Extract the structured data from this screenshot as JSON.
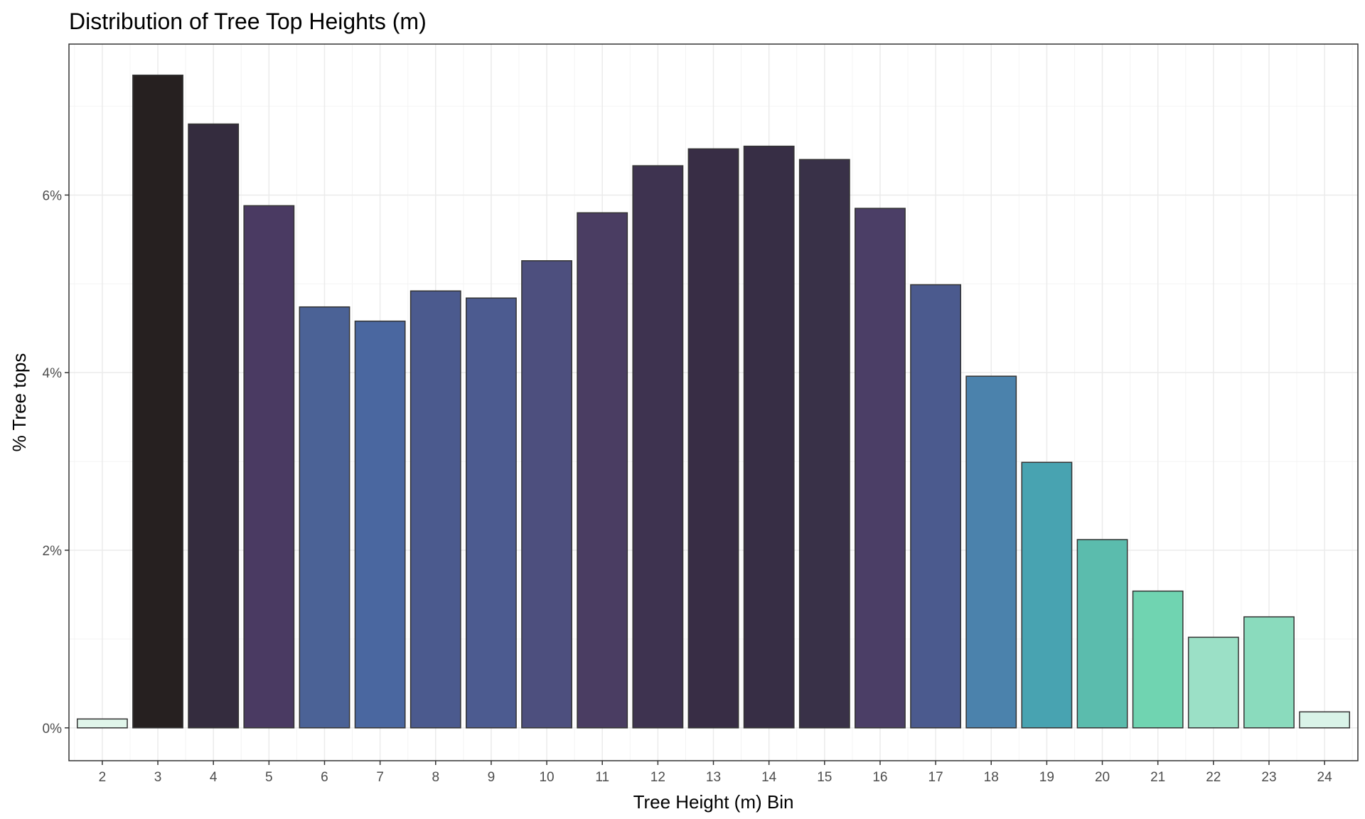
{
  "chart_data": {
    "type": "bar",
    "title": "Distribution of Tree Top Heights (m)",
    "xlabel": "Tree Height (m) Bin",
    "ylabel": "% Tree tops",
    "categories": [
      "2",
      "3",
      "4",
      "5",
      "6",
      "7",
      "8",
      "9",
      "10",
      "11",
      "12",
      "13",
      "14",
      "15",
      "16",
      "17",
      "18",
      "19",
      "20",
      "21",
      "22",
      "23",
      "24"
    ],
    "values": [
      0.1,
      7.35,
      6.8,
      5.88,
      4.74,
      4.58,
      4.92,
      4.84,
      5.26,
      5.8,
      6.33,
      6.52,
      6.55,
      6.4,
      5.85,
      4.99,
      3.96,
      2.99,
      2.12,
      1.54,
      1.02,
      1.25,
      0.18
    ],
    "colors": [
      "#e0f5ea",
      "#262020",
      "#342c3e",
      "#4a3a62",
      "#4b6296",
      "#4a67a0",
      "#4b5a8e",
      "#4c5b90",
      "#4d4f7e",
      "#4a3d62",
      "#3e3350",
      "#382d45",
      "#372e45",
      "#393148",
      "#4b3e66",
      "#4b5a8e",
      "#4b82ac",
      "#48a3b1",
      "#5bbcad",
      "#70d4b1",
      "#9be0c6",
      "#8adbbd",
      "#d9f3e8"
    ],
    "yticks": [
      0,
      2,
      4,
      6
    ],
    "ytick_labels": [
      "0%",
      "2%",
      "4%",
      "6%"
    ],
    "ylim": [
      -0.37,
      7.7
    ],
    "grid": true,
    "legend": "none",
    "bar_border_color": "#333333",
    "panel_border_color": "#333333",
    "grid_major_color": "#ebebeb",
    "grid_minor_color": "#f4f4f4"
  }
}
